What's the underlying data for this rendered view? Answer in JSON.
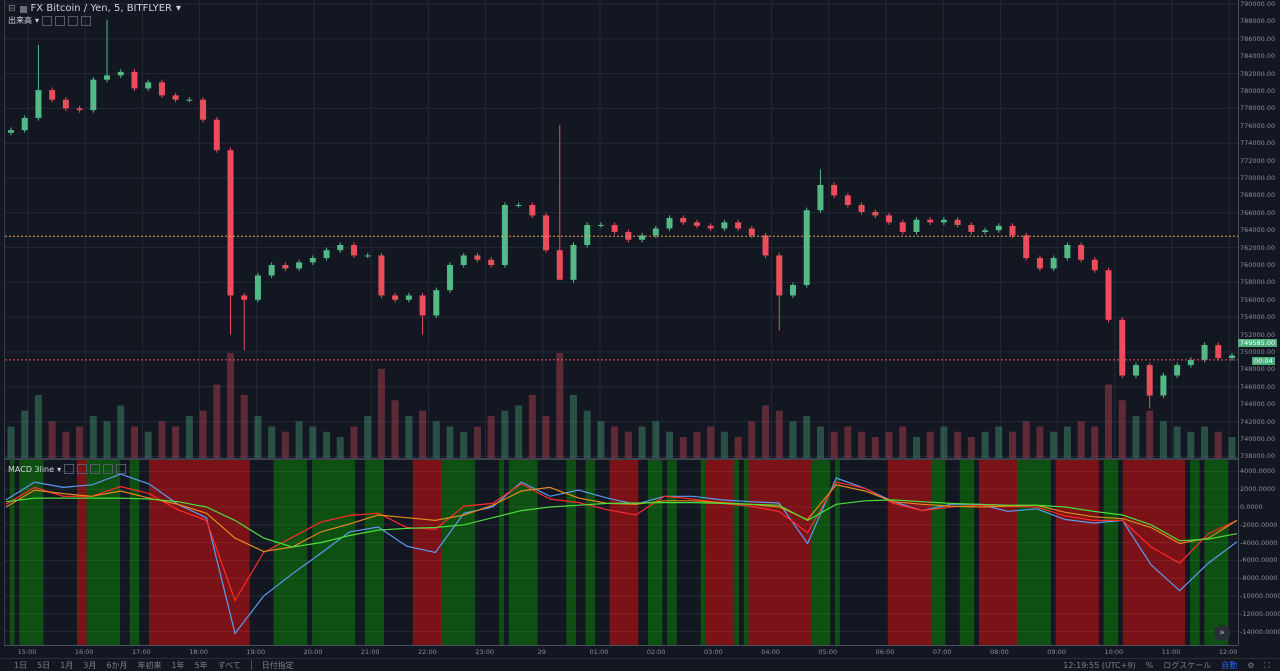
{
  "header": {
    "symbol": "FX Bitcoin / Yen, 5, BITFLYER",
    "symbol_caret": "▾",
    "volume_label": "出来高",
    "volume_caret": "▾"
  },
  "macd": {
    "label": "MACD 3line",
    "caret": "▾",
    "axis_labels": [
      4000,
      2000,
      0,
      -2000,
      -4000,
      -6000,
      -8000,
      -10000,
      -12000,
      -14000
    ],
    "axis_label_text": [
      "4000.0000",
      "2000.0000",
      "0.0000",
      "-2000.0000",
      "-4000.0000",
      "-6000.0000",
      "-8000.0000",
      "-10000.0000",
      "-12000.0000",
      "-14000.0000"
    ],
    "bands": [
      [
        "d",
        5
      ],
      [
        "g",
        5
      ],
      [
        "d",
        5
      ],
      [
        "g",
        25
      ],
      [
        "d",
        35
      ],
      [
        "r",
        10
      ],
      [
        "g",
        35
      ],
      [
        "d",
        10
      ],
      [
        "g",
        10
      ],
      [
        "d",
        10
      ],
      [
        "r",
        105
      ],
      [
        "d",
        25
      ],
      [
        "g",
        35
      ],
      [
        "d",
        5
      ],
      [
        "g",
        45
      ],
      [
        "d",
        10
      ],
      [
        "g",
        20
      ],
      [
        "d",
        30
      ],
      [
        "r",
        30
      ],
      [
        "g",
        35
      ],
      [
        "d",
        25
      ],
      [
        "g",
        5
      ],
      [
        "d",
        5
      ],
      [
        "g",
        30
      ],
      [
        "d",
        30
      ],
      [
        "g",
        10
      ],
      [
        "d",
        10
      ],
      [
        "g",
        10
      ],
      [
        "d",
        15
      ],
      [
        "r",
        30
      ],
      [
        "d",
        10
      ],
      [
        "g",
        15
      ],
      [
        "d",
        5
      ],
      [
        "g",
        10
      ],
      [
        "d",
        25
      ],
      [
        "g",
        5
      ],
      [
        "r",
        30
      ],
      [
        "g",
        5
      ],
      [
        "d",
        5
      ],
      [
        "g",
        5
      ],
      [
        "r",
        65
      ],
      [
        "g",
        20
      ],
      [
        "d",
        5
      ],
      [
        "g",
        5
      ],
      [
        "d",
        50
      ],
      [
        "r",
        45
      ],
      [
        "g",
        15
      ],
      [
        "d",
        15
      ],
      [
        "g",
        15
      ],
      [
        "d",
        5
      ],
      [
        "r",
        40
      ],
      [
        "g",
        35
      ],
      [
        "d",
        5
      ],
      [
        "r",
        45
      ],
      [
        "d",
        5
      ],
      [
        "g",
        15
      ],
      [
        "d",
        5
      ],
      [
        "r",
        65
      ],
      [
        "d",
        5
      ],
      [
        "g",
        10
      ],
      [
        "d",
        5
      ],
      [
        "g",
        25
      ],
      [
        "d",
        10
      ]
    ],
    "series": [
      {
        "color": "#5b9cf0",
        "values": [
          800,
          2800,
          2200,
          2500,
          3700,
          2600,
          300,
          -1200,
          -14200,
          -10000,
          -7500,
          -5200,
          -2800,
          -2250,
          -4400,
          -5100,
          -700,
          0,
          2800,
          1200,
          1900,
          1000,
          300,
          1200,
          1200,
          800,
          600,
          450,
          -4100,
          3260,
          2100,
          600,
          -400,
          300,
          300,
          -500,
          -200,
          -1400,
          -1800,
          -1500,
          -6500,
          -9400,
          -6300,
          -3900
        ]
      },
      {
        "color": "#ff2a2a",
        "values": [
          300,
          2200,
          1200,
          1200,
          2300,
          1500,
          -300,
          -1500,
          -10500,
          -5100,
          -3400,
          -1700,
          -950,
          -700,
          -2300,
          -2500,
          100,
          400,
          2600,
          900,
          500,
          -300,
          -900,
          1200,
          900,
          400,
          100,
          -500,
          -2900,
          2800,
          2100,
          400,
          -400,
          0,
          200,
          100,
          0,
          -1000,
          -1500,
          -1500,
          -4500,
          -6300,
          -3000,
          -1500
        ]
      },
      {
        "color": "#e08a1e",
        "values": [
          0,
          1900,
          1500,
          1200,
          1800,
          1000,
          300,
          -700,
          -3500,
          -5000,
          -4500,
          -2800,
          -1900,
          -900,
          -1200,
          -1500,
          -900,
          200,
          1800,
          2200,
          1000,
          400,
          300,
          700,
          700,
          500,
          300,
          0,
          -1400,
          2500,
          1800,
          600,
          300,
          100,
          0,
          100,
          200,
          -600,
          -1100,
          -1300,
          -2300,
          -4100,
          -3500,
          -1500
        ]
      },
      {
        "color": "#4cdc3c",
        "values": [
          600,
          1000,
          1000,
          1000,
          1000,
          900,
          600,
          0,
          -1500,
          -3500,
          -4500,
          -4000,
          -3200,
          -2600,
          -2400,
          -2300,
          -2000,
          -1200,
          -400,
          0,
          200,
          400,
          450,
          500,
          500,
          400,
          300,
          200,
          -1500,
          300,
          700,
          800,
          600,
          400,
          300,
          200,
          200,
          0,
          -500,
          -900,
          -2000,
          -3800,
          -3600,
          -3000
        ]
      }
    ],
    "colors": {
      "green": "#0d5012",
      "red": "#7a1217",
      "dark": "#131722"
    }
  },
  "price": {
    "axis_labels": [
      "790000.00",
      "788000.00",
      "786000.00",
      "784000.00",
      "782000.00",
      "780000.00",
      "778000.00",
      "776000.00",
      "774000.00",
      "772000.00",
      "770000.00",
      "768000.00",
      "766000.00",
      "764000.00",
      "762000.00",
      "760000.00",
      "758000.00",
      "756000.00",
      "754000.00",
      "752000.00",
      "750000.00",
      "748000.00",
      "746000.00",
      "744000.00",
      "742000.00",
      "740000.00",
      "738000.00"
    ],
    "range": [
      738000,
      790000
    ],
    "closes": [
      775500,
      776900,
      780100,
      779000,
      778000,
      777800,
      781300,
      781800,
      782200,
      780300,
      781000,
      779500,
      779000,
      779000,
      776700,
      773200,
      756500,
      756000,
      758800,
      760000,
      759600,
      760300,
      760800,
      761700,
      762300,
      761100,
      761100,
      756500,
      756000,
      756500,
      754200,
      757100,
      760000,
      761100,
      760600,
      760000,
      766900,
      766900,
      765700,
      761700,
      758300,
      762300,
      764600,
      764600,
      763800,
      762900,
      763400,
      764200,
      765400,
      764900,
      764500,
      764200,
      764900,
      764200,
      763400,
      761100,
      756500,
      757700,
      766300,
      769200,
      768000,
      766900,
      766100,
      765700,
      764900,
      763800,
      765200,
      764900,
      765200,
      764600,
      763800,
      764000,
      764500,
      763400,
      760800,
      759600,
      760800,
      762300,
      760600,
      759400,
      753700,
      747300,
      748500,
      745000,
      747300,
      748500,
      749100,
      750800,
      749300,
      749600
    ],
    "extremes": [
      {
        "i": 2,
        "h": 785300
      },
      {
        "i": 7,
        "h": 788200
      },
      {
        "i": 16,
        "l": 752000
      },
      {
        "i": 17,
        "l": 750200
      },
      {
        "i": 30,
        "l": 752000
      },
      {
        "i": 40,
        "h": 776100
      },
      {
        "i": 40,
        "l": 759000
      },
      {
        "i": 56,
        "l": 752500
      },
      {
        "i": 59,
        "h": 771000
      },
      {
        "i": 83,
        "l": 743500
      }
    ],
    "volume": [
      30,
      45,
      60,
      35,
      25,
      30,
      40,
      35,
      50,
      30,
      25,
      35,
      30,
      40,
      45,
      70,
      100,
      60,
      40,
      30,
      25,
      35,
      30,
      25,
      20,
      30,
      40,
      85,
      55,
      40,
      45,
      35,
      30,
      25,
      30,
      40,
      45,
      50,
      60,
      40,
      100,
      60,
      45,
      35,
      30,
      25,
      30,
      35,
      25,
      20,
      25,
      30,
      25,
      20,
      35,
      50,
      45,
      35,
      40,
      30,
      25,
      30,
      25,
      20,
      25,
      30,
      20,
      25,
      30,
      25,
      20,
      25,
      30,
      25,
      35,
      30,
      25,
      30,
      35,
      30,
      70,
      55,
      40,
      45,
      35,
      30,
      25,
      30,
      25,
      20
    ],
    "horizontal_lines": [
      {
        "price": 763300,
        "color": "#e0a050"
      },
      {
        "price": 749100,
        "color": "#eb4d5c"
      }
    ],
    "last_price_label": "749585.00",
    "countdown_label": "00:04",
    "up_color": "#53b987",
    "down_color": "#eb4d5c"
  },
  "time_axis": [
    "15:00",
    "16:00",
    "17:00",
    "18:00",
    "19:00",
    "20:00",
    "21:00",
    "22:00",
    "23:00",
    "29",
    "01:00",
    "02:00",
    "03:00",
    "04:00",
    "05:00",
    "06:00",
    "07:00",
    "08:00",
    "09:00",
    "10:00",
    "11:00",
    "12:00"
  ],
  "toolbar": {
    "ranges": [
      "1日",
      "5日",
      "1月",
      "3月",
      "6か月",
      "年初来",
      "1年",
      "5年",
      "すべて"
    ],
    "date_range": "日付指定",
    "clock": "12:19:55 (UTC+9)",
    "percent": "%",
    "log_scale": "ログスケール",
    "auto": "自動",
    "gear_icon": "⚙",
    "fullscreen_icon": "⛶",
    "goto_latest_icon": "»"
  }
}
